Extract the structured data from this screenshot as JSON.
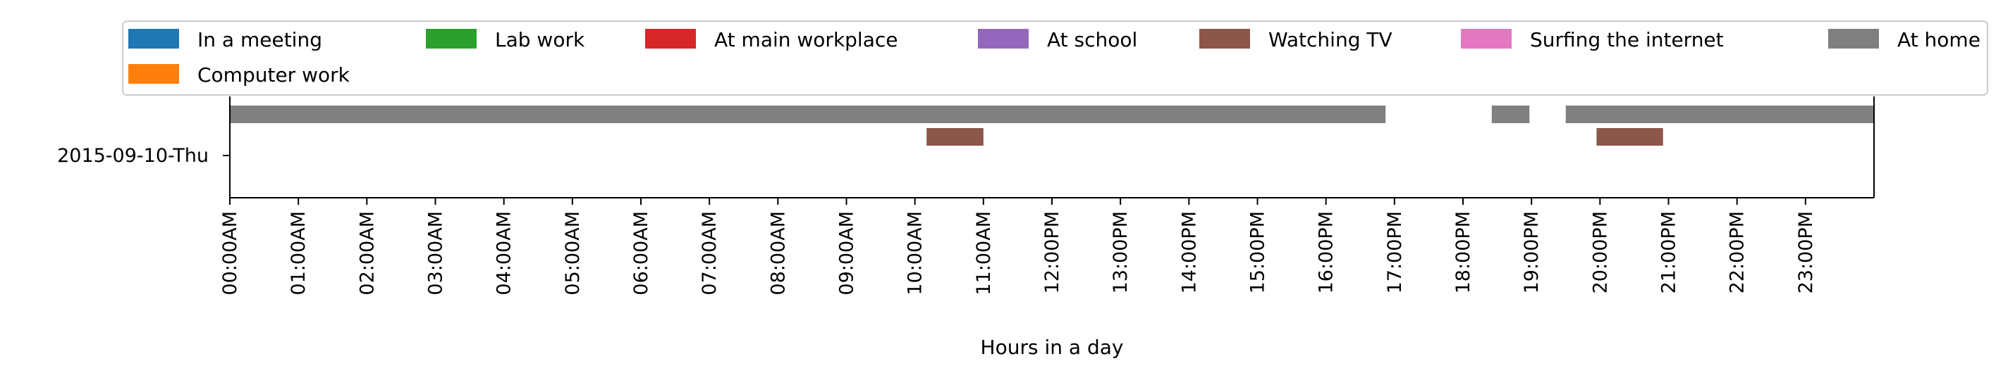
{
  "chart_data": {
    "type": "timeline",
    "xlabel": "Hours in a day",
    "ylabel": "",
    "xlim": [
      0,
      24
    ],
    "day_label": "2015-09-10-Thu",
    "legend_position": "top",
    "legend": [
      {
        "name": "In a meeting",
        "color": "#1f77b4"
      },
      {
        "name": "Lab work",
        "color": "#2ca02c"
      },
      {
        "name": "At main workplace",
        "color": "#d62728"
      },
      {
        "name": "At school",
        "color": "#9467bd"
      },
      {
        "name": "Watching TV",
        "color": "#8c564b"
      },
      {
        "name": "Surfing the internet",
        "color": "#e377c2"
      },
      {
        "name": "At home",
        "color": "#7f7f7f"
      },
      {
        "name": "Computer work",
        "color": "#ff7f0e"
      }
    ],
    "x_ticks": [
      "00:00AM",
      "01:00AM",
      "02:00AM",
      "03:00AM",
      "04:00AM",
      "05:00AM",
      "06:00AM",
      "07:00AM",
      "08:00AM",
      "09:00AM",
      "10:00AM",
      "11:00AM",
      "12:00PM",
      "13:00PM",
      "14:00PM",
      "15:00PM",
      "16:00PM",
      "17:00PM",
      "18:00PM",
      "19:00PM",
      "20:00PM",
      "21:00PM",
      "22:00PM",
      "23:00PM"
    ],
    "series": [
      {
        "name": "At home",
        "lane": 0,
        "color": "#7f7f7f",
        "intervals": [
          [
            0.0,
            16.87
          ],
          [
            18.42,
            18.97
          ],
          [
            19.5,
            24.0
          ]
        ]
      },
      {
        "name": "Watching TV",
        "lane": 1,
        "color": "#8c564b",
        "intervals": [
          [
            10.17,
            11.0
          ],
          [
            19.95,
            20.92
          ]
        ]
      }
    ]
  }
}
